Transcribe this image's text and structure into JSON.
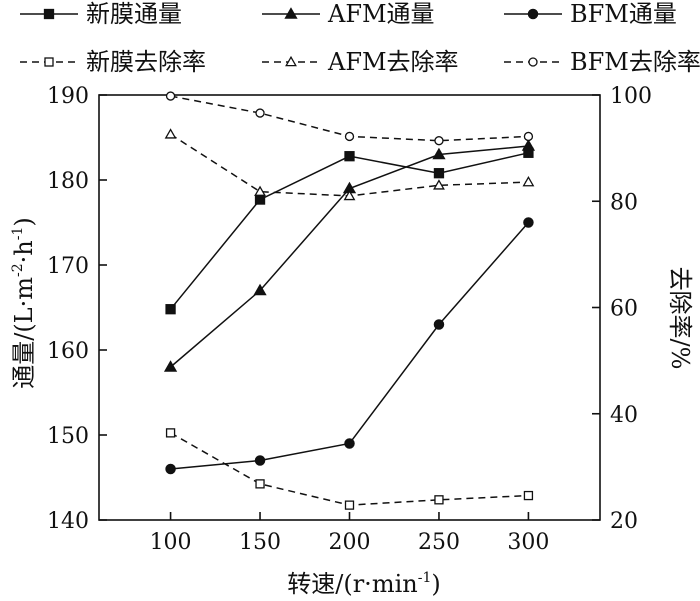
{
  "chart_data": {
    "type": "line",
    "x": [
      100,
      150,
      200,
      250,
      300
    ],
    "xlim": [
      60,
      340
    ],
    "xticks": [
      "100",
      "150",
      "200",
      "250",
      "300"
    ],
    "xlabel": {
      "main": "转速/(r·min",
      "sup": "-1",
      "end": ")"
    },
    "ylabel_left": {
      "main": "通量/(L·m",
      "sup1": "-2",
      "mid": "·h",
      "sup2": "-1",
      "end": ")"
    },
    "ylabel_right": "去除率/%",
    "ylim_left": [
      140,
      190
    ],
    "yticks_left": [
      "140",
      "150",
      "160",
      "170",
      "180",
      "190"
    ],
    "ylim_right": [
      20,
      100
    ],
    "yticks_right": [
      "20",
      "40",
      "60",
      "80",
      "100"
    ],
    "grid": false,
    "legend_position": "top",
    "series": [
      {
        "name": "新膜通量",
        "axis": "left",
        "style": "solid",
        "marker": "square",
        "filled": true,
        "values": [
          164.8,
          177.7,
          182.8,
          180.8,
          183.2
        ]
      },
      {
        "name": "AFM通量",
        "axis": "left",
        "style": "solid",
        "marker": "triangle",
        "filled": true,
        "values": [
          158.0,
          167.0,
          179.0,
          183.0,
          184.0
        ]
      },
      {
        "name": "BFM通量",
        "axis": "left",
        "style": "solid",
        "marker": "circle",
        "filled": true,
        "values": [
          146.0,
          147.0,
          149.0,
          163.0,
          175.0
        ]
      },
      {
        "name": "新膜去除率",
        "axis": "right",
        "style": "dashed",
        "marker": "square",
        "filled": false,
        "values": [
          36.4,
          26.8,
          22.8,
          23.8,
          24.6
        ]
      },
      {
        "name": "AFM去除率",
        "axis": "right",
        "style": "dashed",
        "marker": "triangle",
        "filled": false,
        "values": [
          92.6,
          81.8,
          81.0,
          83.0,
          83.6
        ]
      },
      {
        "name": "BFM去除率",
        "axis": "right",
        "style": "dashed",
        "marker": "circle",
        "filled": false,
        "values": [
          99.8,
          96.6,
          92.2,
          91.4,
          92.2
        ]
      }
    ]
  }
}
